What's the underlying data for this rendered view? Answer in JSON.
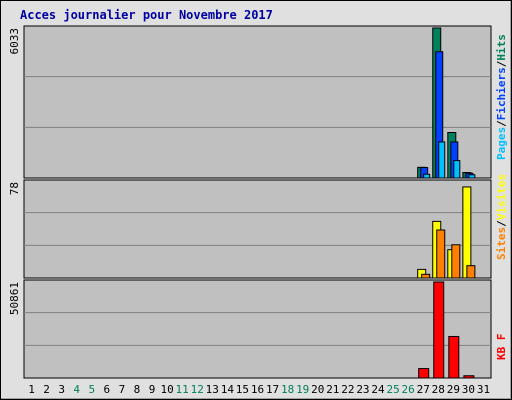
{
  "chart_data": {
    "type": "bar",
    "title": "Acces journalier pour Novembre 2017",
    "categories": [
      "1",
      "2",
      "3",
      "4",
      "5",
      "6",
      "7",
      "8",
      "9",
      "10",
      "11",
      "12",
      "13",
      "14",
      "15",
      "16",
      "17",
      "18",
      "19",
      "20",
      "21",
      "22",
      "23",
      "24",
      "25",
      "26",
      "27",
      "28",
      "29",
      "30",
      "31"
    ],
    "weekend_days": [
      "4",
      "5",
      "11",
      "12",
      "18",
      "19",
      "25",
      "26"
    ],
    "colors": {
      "hits": "#00805c",
      "files": "#0040ff",
      "pages": "#00c0ff",
      "visits": "#ffff00",
      "sites": "#ff8000",
      "kbytes": "#ff0000",
      "weekday_label": "#000000",
      "weekend_label": "#00805c",
      "plot_bg": "#c0c0c0",
      "frame_bg": "#e0e0e0",
      "title": "#0000a0"
    },
    "panels": [
      {
        "id": "hits",
        "ymax_label": "6033",
        "ylim": [
          0,
          6033
        ],
        "legend": [
          {
            "text": "Pages",
            "color": "#00c0ff"
          },
          {
            "text": "/",
            "color": "#000000"
          },
          {
            "text": "Fichiers",
            "color": "#0040ff"
          },
          {
            "text": "/",
            "color": "#000000"
          },
          {
            "text": "Hits",
            "color": "#00805c"
          }
        ],
        "series": [
          {
            "key": "hits",
            "color": "#00805c",
            "values": [
              0,
              0,
              0,
              0,
              0,
              0,
              0,
              0,
              0,
              0,
              0,
              0,
              0,
              0,
              0,
              0,
              0,
              0,
              0,
              0,
              0,
              0,
              0,
              0,
              0,
              0,
              430,
              6033,
              1830,
              220,
              0
            ]
          },
          {
            "key": "files",
            "color": "#0040ff",
            "values": [
              0,
              0,
              0,
              0,
              0,
              0,
              0,
              0,
              0,
              0,
              0,
              0,
              0,
              0,
              0,
              0,
              0,
              0,
              0,
              0,
              0,
              0,
              0,
              0,
              0,
              0,
              420,
              5080,
              1450,
              190,
              0
            ]
          },
          {
            "key": "pages",
            "color": "#00c0ff",
            "values": [
              0,
              0,
              0,
              0,
              0,
              0,
              0,
              0,
              0,
              0,
              0,
              0,
              0,
              0,
              0,
              0,
              0,
              0,
              0,
              0,
              0,
              0,
              0,
              0,
              0,
              0,
              150,
              1450,
              700,
              130,
              0
            ]
          }
        ]
      },
      {
        "id": "visits",
        "ymax_label": "78",
        "ylim": [
          0,
          78
        ],
        "legend": [
          {
            "text": "Sites",
            "color": "#ff8000"
          },
          {
            "text": "/",
            "color": "#000000"
          },
          {
            "text": "Visites",
            "color": "#ffff00"
          }
        ],
        "series": [
          {
            "key": "visits",
            "color": "#ffff00",
            "values": [
              0,
              0,
              0,
              0,
              0,
              0,
              0,
              0,
              0,
              0,
              0,
              0,
              0,
              0,
              0,
              0,
              0,
              0,
              0,
              0,
              0,
              0,
              0,
              0,
              0,
              0,
              7,
              46,
              23,
              74,
              0
            ]
          },
          {
            "key": "sites",
            "color": "#ff8000",
            "values": [
              0,
              0,
              0,
              0,
              0,
              0,
              0,
              0,
              0,
              0,
              0,
              0,
              0,
              0,
              0,
              0,
              0,
              0,
              0,
              0,
              0,
              0,
              0,
              0,
              0,
              0,
              3,
              39,
              27,
              10,
              0
            ]
          }
        ]
      },
      {
        "id": "kbytes",
        "ymax_label": "50861",
        "ylim": [
          0,
          50861
        ],
        "legend": [
          {
            "text": "KB F",
            "color": "#ff0000"
          }
        ],
        "series": [
          {
            "key": "kbytes",
            "color": "#ff0000",
            "values": [
              0,
              0,
              0,
              0,
              0,
              0,
              0,
              0,
              0,
              0,
              0,
              0,
              0,
              0,
              0,
              0,
              0,
              0,
              0,
              0,
              0,
              0,
              0,
              0,
              0,
              0,
              5000,
              50861,
              22000,
              1200,
              0
            ]
          }
        ]
      }
    ]
  }
}
